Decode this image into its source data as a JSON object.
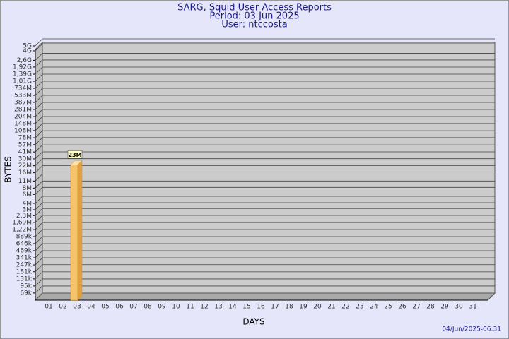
{
  "chart_data": {
    "type": "bar",
    "title": "SARG, Squid User Access Reports",
    "subtitle": "Period: 03 Jun 2025",
    "user": "User: ntccosta",
    "x_label": "DAYS",
    "y_label": "BYTES",
    "footer": "04/Jun/2025-06:31",
    "categories": [
      "01",
      "02",
      "03",
      "04",
      "05",
      "06",
      "07",
      "08",
      "09",
      "10",
      "11",
      "12",
      "13",
      "14",
      "15",
      "16",
      "17",
      "18",
      "19",
      "20",
      "21",
      "22",
      "23",
      "24",
      "25",
      "26",
      "27",
      "28",
      "29",
      "30",
      "31"
    ],
    "values": [
      null,
      null,
      23000000,
      null,
      null,
      null,
      null,
      null,
      null,
      null,
      null,
      null,
      null,
      null,
      null,
      null,
      null,
      null,
      null,
      null,
      null,
      null,
      null,
      null,
      null,
      null,
      null,
      null,
      null,
      null,
      null
    ],
    "value_labels": [
      null,
      null,
      "23M",
      null,
      null,
      null,
      null,
      null,
      null,
      null,
      null,
      null,
      null,
      null,
      null,
      null,
      null,
      null,
      null,
      null,
      null,
      null,
      null,
      null,
      null,
      null,
      null,
      null,
      null,
      null,
      null
    ],
    "color": "#f5c36b",
    "log_scale": true,
    "grid": true,
    "ylim": [
      50000,
      5000000000
    ],
    "yticks": [
      {
        "value": 69000,
        "label": "69k"
      },
      {
        "value": 95000,
        "label": "95k"
      },
      {
        "value": 131000,
        "label": "131k"
      },
      {
        "value": 181000,
        "label": "181k"
      },
      {
        "value": 247000,
        "label": "247k"
      },
      {
        "value": 341000,
        "label": "341k"
      },
      {
        "value": 469000,
        "label": "469k"
      },
      {
        "value": 646000,
        "label": "646k"
      },
      {
        "value": 889000,
        "label": "889k"
      },
      {
        "value": 1220000,
        "label": "1,22M"
      },
      {
        "value": 1690000,
        "label": "1,69M"
      },
      {
        "value": 2300000,
        "label": "2,3M"
      },
      {
        "value": 3000000,
        "label": "3M"
      },
      {
        "value": 4000000,
        "label": "4M"
      },
      {
        "value": 6000000,
        "label": "6M"
      },
      {
        "value": 8000000,
        "label": "8M"
      },
      {
        "value": 11000000,
        "label": "11M"
      },
      {
        "value": 16000000,
        "label": "16M"
      },
      {
        "value": 22000000,
        "label": "22M"
      },
      {
        "value": 30000000,
        "label": "30M"
      },
      {
        "value": 41000000,
        "label": "41M"
      },
      {
        "value": 57000000,
        "label": "57M"
      },
      {
        "value": 78000000,
        "label": "78M"
      },
      {
        "value": 108000000,
        "label": "108M"
      },
      {
        "value": 148000000,
        "label": "148M"
      },
      {
        "value": 204000000,
        "label": "204M"
      },
      {
        "value": 281000000,
        "label": "281M"
      },
      {
        "value": 387000000,
        "label": "387M"
      },
      {
        "value": 533000000,
        "label": "533M"
      },
      {
        "value": 734000000,
        "label": "734M"
      },
      {
        "value": 1010000000,
        "label": "1,01G"
      },
      {
        "value": 1390000000,
        "label": "1,39G"
      },
      {
        "value": 1920000000,
        "label": "1,92G"
      },
      {
        "value": 2600000000,
        "label": "2,6G"
      },
      {
        "value": 4000000000,
        "label": "4G"
      },
      {
        "value": 5000000000,
        "label": "5G"
      }
    ]
  }
}
